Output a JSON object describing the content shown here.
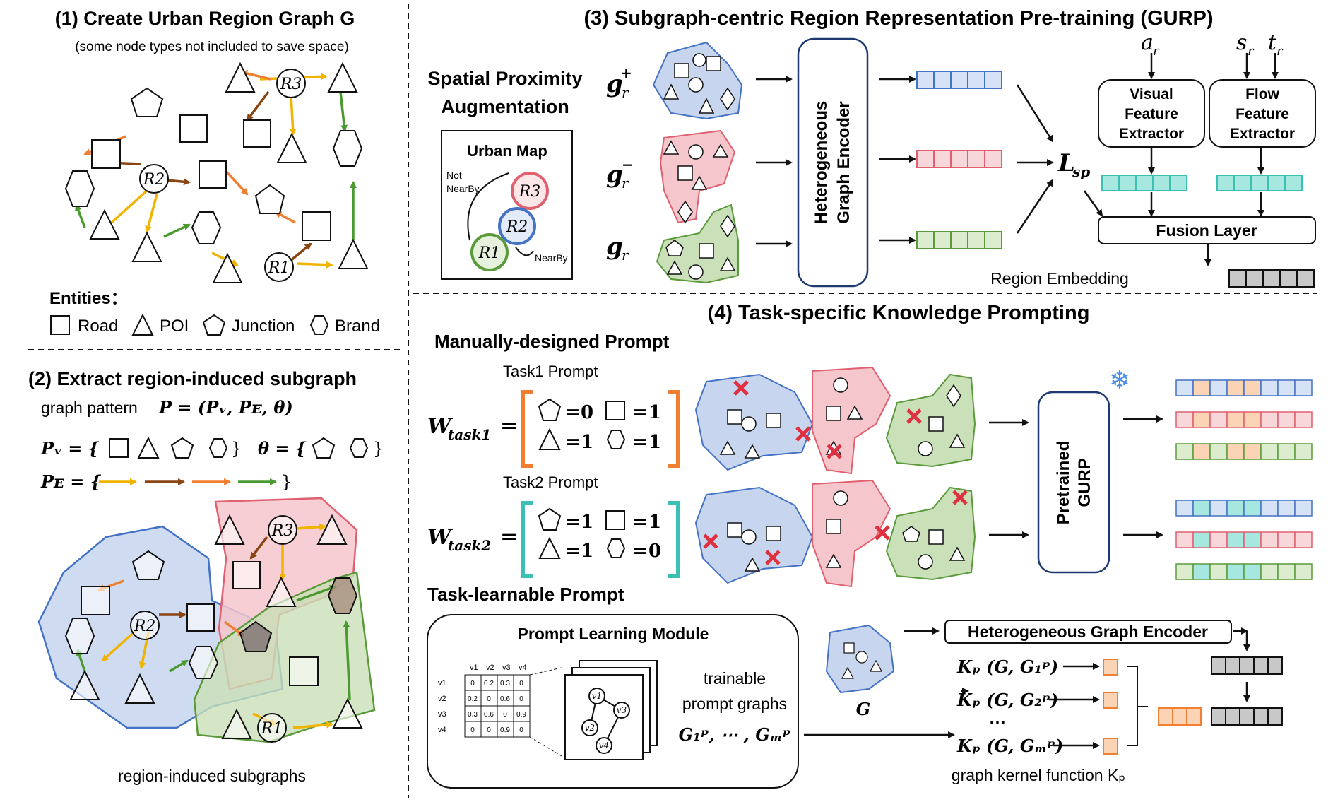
{
  "panel1": {
    "title": "(1) Create Urban Region Graph G",
    "subtitle": "(some node types not included to save space)",
    "regions": [
      "R3",
      "R2",
      "R1"
    ],
    "entities_label": "Entities：",
    "legend": [
      "Road",
      "POI",
      "Junction",
      "Brand"
    ]
  },
  "panel2": {
    "title": "(2) Extract region-induced subgraph",
    "pattern_text": "graph pattern",
    "pattern_formula": "P = (Pᵥ, Pᴇ, θ)",
    "pv_label": "Pᵥ = {",
    "theta_label": "θ = {",
    "pe_label": "Pᴇ = {",
    "close_brace": "}",
    "regions": [
      "R3",
      "R2",
      "R1"
    ],
    "caption": "region-induced subgraphs"
  },
  "panel3": {
    "title": "(3)  Subgraph-centric Region Representation Pre-training (GURP)",
    "aug_line1": "Spatial Proximity",
    "aug_line2": "Augmentation",
    "map_title": "Urban Map",
    "not_nearby_1": "Not",
    "not_nearby_2": "NearBy",
    "nearby": "NearBy",
    "map_regions": [
      "R3",
      "R2",
      "R1"
    ],
    "g_pos": "g",
    "g_pos_sup": "+",
    "g_neg_sup": "−",
    "g_sub": "r",
    "encoder_line1": "Heterogeneous",
    "encoder_line2": "Graph Encoder",
    "loss": "L",
    "loss_sub": "sp",
    "ar": "a",
    "sr": "s",
    "tr": "t",
    "visual": [
      "Visual",
      "Feature",
      "Extractor"
    ],
    "flow": [
      "Flow",
      "Feature",
      "Extractor"
    ],
    "fusion": "Fusion Layer",
    "region_embedding": "Region Embedding"
  },
  "panel4": {
    "title": "(4)  Task-specific Knowledge Prompting",
    "manual_title": "Manually-designed Prompt",
    "task1_label": "Task1 Prompt",
    "task2_label": "Task2 Prompt",
    "w_task1": "W",
    "w_task1_sub": "task1",
    "w_task2_sub": "task2",
    "eq": "=",
    "task1_values": [
      "0",
      "1",
      "1",
      "1"
    ],
    "task2_values": [
      "1",
      "1",
      "1",
      "0"
    ],
    "pretrained": [
      "Pretrained",
      "GURP"
    ],
    "learnable_title": "Task-learnable Prompt",
    "module_title": "Prompt Learning Module",
    "matrix_cols": [
      "v1",
      "v2",
      "v3",
      "v4"
    ],
    "matrix_rows": [
      "v1",
      "v2",
      "v3",
      "v4"
    ],
    "matrix_values": [
      [
        "0",
        "0.2",
        "0.3",
        "0"
      ],
      [
        "0.2",
        "0",
        "0.6",
        "0"
      ],
      [
        "0.3",
        "0.6",
        "0",
        "0.9"
      ],
      [
        "0",
        "0",
        "0.9",
        "0"
      ]
    ],
    "trainable_1": "trainable",
    "trainable_2": "prompt graphs",
    "prompt_graphs": "G₁ᵖ, ⋯ , Gₘᵖ",
    "g_label": "G",
    "hge": "Heterogeneous Graph Encoder",
    "kernels": [
      "Kₚ (G, G₁ᵖ)",
      "Kₚ (G, G₂ᵖ)",
      "Kₚ (G, Gₘᵖ)"
    ],
    "dots": "⋯",
    "kernel_caption": "graph kernel function Kₚ"
  },
  "colors": {
    "blue": "#4472c4",
    "blue_fill": "#dae3f3",
    "red": "#e06070",
    "red_fill": "#f8d7da",
    "green": "#5a9a3a",
    "green_fill": "#dceccf",
    "teal": "#3cc0b4",
    "orange": "#f4a460",
    "yellow_arrow": "#f0b400",
    "brown_arrow": "#8b4513",
    "orange_arrow": "#f08030",
    "green_arrow": "#4a9a30",
    "gray": "#bdbdbd"
  }
}
